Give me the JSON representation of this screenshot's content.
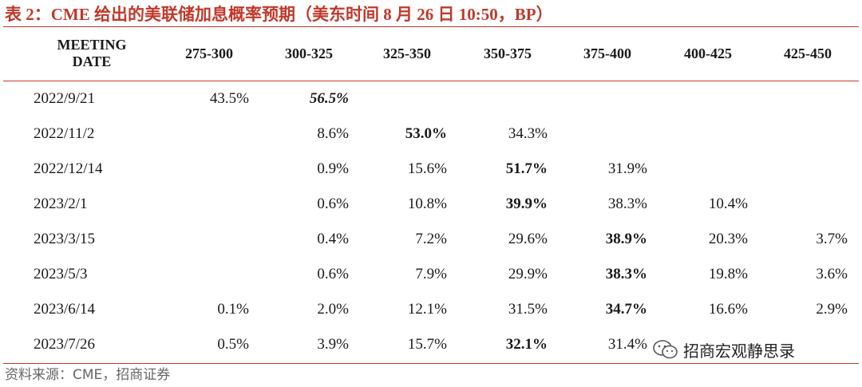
{
  "title": "表 2：CME 给出的美联储加息概率预期（美东时间 8 月 26 日 10:50，BP）",
  "table": {
    "headers": [
      "MEETING\nDATE",
      "275-300",
      "300-325",
      "325-350",
      "350-375",
      "375-400",
      "400-425",
      "425-450"
    ],
    "rows": [
      {
        "date": "2022/9/21",
        "cells": [
          {
            "v": "43.5%"
          },
          {
            "v": "56.5%",
            "style": "bi"
          },
          {
            "v": ""
          },
          {
            "v": ""
          },
          {
            "v": ""
          },
          {
            "v": ""
          },
          {
            "v": ""
          }
        ]
      },
      {
        "date": "2022/11/2",
        "cells": [
          {
            "v": ""
          },
          {
            "v": "8.6%"
          },
          {
            "v": "53.0%",
            "style": "b"
          },
          {
            "v": "34.3%"
          },
          {
            "v": ""
          },
          {
            "v": ""
          },
          {
            "v": ""
          }
        ]
      },
      {
        "date": "2022/12/14",
        "cells": [
          {
            "v": ""
          },
          {
            "v": "0.9%"
          },
          {
            "v": "15.6%"
          },
          {
            "v": "51.7%",
            "style": "b"
          },
          {
            "v": "31.9%"
          },
          {
            "v": ""
          },
          {
            "v": ""
          }
        ]
      },
      {
        "date": "2023/2/1",
        "cells": [
          {
            "v": ""
          },
          {
            "v": "0.6%"
          },
          {
            "v": "10.8%"
          },
          {
            "v": "39.9%",
            "style": "b"
          },
          {
            "v": "38.3%"
          },
          {
            "v": "10.4%"
          },
          {
            "v": ""
          }
        ]
      },
      {
        "date": "2023/3/15",
        "cells": [
          {
            "v": ""
          },
          {
            "v": "0.4%"
          },
          {
            "v": "7.2%"
          },
          {
            "v": "29.6%"
          },
          {
            "v": "38.9%",
            "style": "b"
          },
          {
            "v": "20.3%"
          },
          {
            "v": "3.7%"
          }
        ]
      },
      {
        "date": "2023/5/3",
        "cells": [
          {
            "v": ""
          },
          {
            "v": "0.6%"
          },
          {
            "v": "7.9%"
          },
          {
            "v": "29.9%"
          },
          {
            "v": "38.3%",
            "style": "b"
          },
          {
            "v": "19.8%"
          },
          {
            "v": "3.6%"
          }
        ]
      },
      {
        "date": "2023/6/14",
        "cells": [
          {
            "v": "0.1%"
          },
          {
            "v": "2.0%"
          },
          {
            "v": "12.1%"
          },
          {
            "v": "31.5%"
          },
          {
            "v": "34.7%",
            "style": "b"
          },
          {
            "v": "16.6%"
          },
          {
            "v": "2.9%"
          }
        ]
      },
      {
        "date": "2023/7/26",
        "cells": [
          {
            "v": "0.5%"
          },
          {
            "v": "3.9%"
          },
          {
            "v": "15.7%"
          },
          {
            "v": "32.1%",
            "style": "b"
          },
          {
            "v": "31.4%"
          },
          {
            "v": ""
          },
          {
            "v": ""
          }
        ]
      }
    ]
  },
  "source": "资料来源：CME，招商证券",
  "watermark": {
    "text": "招商宏观静思录",
    "icon": "wechat-icon"
  },
  "colors": {
    "accent": "#c0392b",
    "text": "#1a1a1a",
    "source": "#666666"
  }
}
